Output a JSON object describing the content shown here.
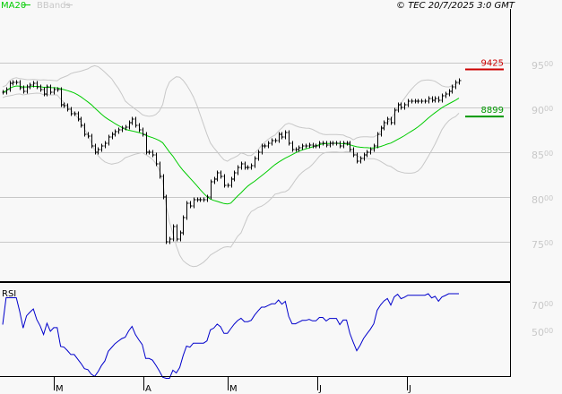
{
  "header": {
    "legend": [
      {
        "label": "MA20",
        "color": "#00cc00"
      },
      {
        "label": "BBands",
        "color": "#c8c8c8"
      }
    ],
    "copyright": "© TEC 20/7/2025 3:0 GMT"
  },
  "chart_data": [
    {
      "type": "bar",
      "panel": "price",
      "indicators": [
        "MA20",
        "BBands"
      ],
      "y_ticks": [
        {
          "major": "95",
          "minor": "00",
          "value": 9500
        },
        {
          "major": "90",
          "minor": "00",
          "value": 9000
        },
        {
          "major": "85",
          "minor": "00",
          "value": 8500
        },
        {
          "major": "80",
          "minor": "00",
          "value": 8000
        },
        {
          "major": "75",
          "minor": "00",
          "value": 7500
        }
      ],
      "ylim": [
        7200,
        9700
      ],
      "grid": true,
      "levels": [
        {
          "label": "9425",
          "value": 9425,
          "color": "#cc0000"
        },
        {
          "label": "8899",
          "value": 8899,
          "color": "#009900"
        }
      ],
      "x_ticks": [
        "M",
        "A",
        "M",
        "J",
        "J"
      ],
      "close": [
        9170,
        9200,
        9270,
        9280,
        9280,
        9220,
        9180,
        9230,
        9250,
        9270,
        9230,
        9200,
        9150,
        9230,
        9170,
        9200,
        9200,
        9030,
        9020,
        8980,
        8930,
        8930,
        8870,
        8800,
        8700,
        8680,
        8570,
        8500,
        8530,
        8570,
        8600,
        8670,
        8700,
        8730,
        8750,
        8770,
        8780,
        8830,
        8870,
        8800,
        8750,
        8700,
        8500,
        8500,
        8470,
        8370,
        8230,
        8000,
        7500,
        7530,
        7670,
        7530,
        7600,
        7770,
        7930,
        7900,
        7970,
        7970,
        7970,
        7970,
        8000,
        8170,
        8200,
        8270,
        8230,
        8130,
        8130,
        8200,
        8270,
        8330,
        8370,
        8330,
        8330,
        8350,
        8430,
        8500,
        8570,
        8570,
        8600,
        8630,
        8630,
        8700,
        8670,
        8720,
        8600,
        8530,
        8530,
        8550,
        8570,
        8570,
        8580,
        8570,
        8570,
        8600,
        8600,
        8580,
        8600,
        8600,
        8600,
        8570,
        8600,
        8600,
        8530,
        8470,
        8400,
        8430,
        8470,
        8500,
        8530,
        8570,
        8700,
        8770,
        8830,
        8870,
        8830,
        8970,
        9030,
        9000,
        9030,
        9070,
        9070,
        9070,
        9070,
        9070,
        9070,
        9100,
        9080,
        9100,
        9080,
        9130,
        9150,
        9180,
        9230,
        9280,
        9300
      ]
    },
    {
      "type": "line",
      "panel": "rsi",
      "title": "RSI",
      "y_ticks": [
        {
          "major": "70",
          "minor": "00",
          "value": 70
        },
        {
          "major": "50",
          "minor": "00",
          "value": 50
        }
      ],
      "ylim": [
        10,
        80
      ],
      "series_color": "#0000cc"
    }
  ]
}
